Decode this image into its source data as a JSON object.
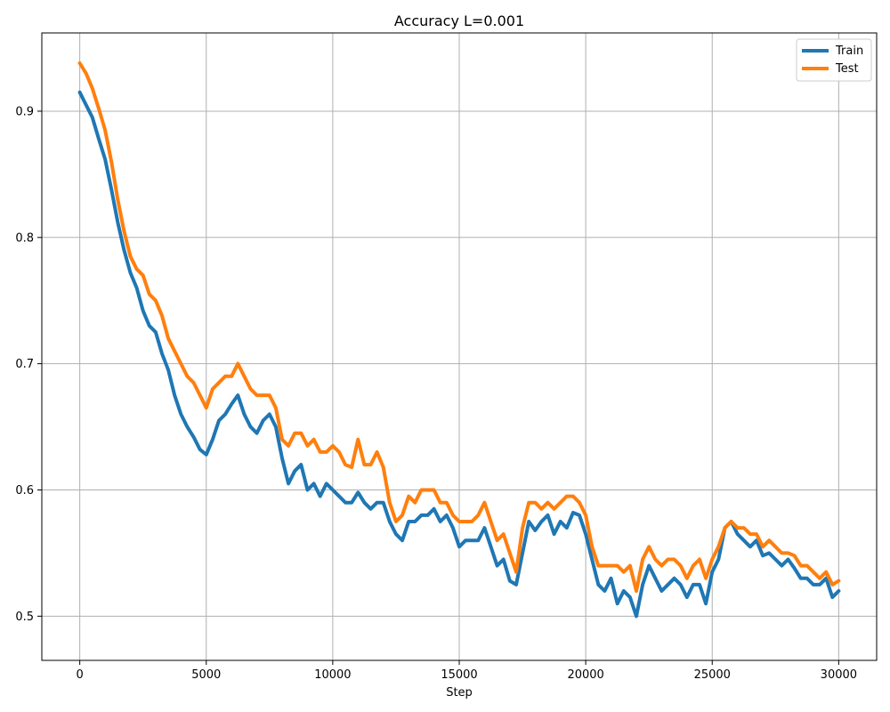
{
  "chart_data": {
    "type": "line",
    "title": "Accuracy L=0.001",
    "xlabel": "Step",
    "ylabel": "",
    "xlim": [
      -1500,
      31500
    ],
    "ylim": [
      0.465,
      0.962
    ],
    "xticks": [
      0,
      5000,
      10000,
      15000,
      20000,
      25000,
      30000
    ],
    "yticks": [
      0.5,
      0.6,
      0.7,
      0.8,
      0.9
    ],
    "grid": true,
    "legend_position": "top-right",
    "series": [
      {
        "name": "Train",
        "color": "#1f77b4",
        "x": [
          0,
          250,
          500,
          750,
          1000,
          1250,
          1500,
          1750,
          2000,
          2250,
          2500,
          2750,
          3000,
          3250,
          3500,
          3750,
          4000,
          4250,
          4500,
          4750,
          5000,
          5250,
          5500,
          5750,
          6000,
          6250,
          6500,
          6750,
          7000,
          7250,
          7500,
          7750,
          8000,
          8250,
          8500,
          8750,
          9000,
          9250,
          9500,
          9750,
          10000,
          10250,
          10500,
          10750,
          11000,
          11250,
          11500,
          11750,
          12000,
          12250,
          12500,
          12750,
          13000,
          13250,
          13500,
          13750,
          14000,
          14250,
          14500,
          14750,
          15000,
          15250,
          15500,
          15750,
          16000,
          16250,
          16500,
          16750,
          17000,
          17250,
          17500,
          17750,
          18000,
          18250,
          18500,
          18750,
          19000,
          19250,
          19500,
          19750,
          20000,
          20250,
          20500,
          20750,
          21000,
          21250,
          21500,
          21750,
          22000,
          22250,
          22500,
          22750,
          23000,
          23250,
          23500,
          23750,
          24000,
          24250,
          24500,
          24750,
          25000,
          25250,
          25500,
          25750,
          26000,
          26250,
          26500,
          26750,
          27000,
          27250,
          27500,
          27750,
          28000,
          28250,
          28500,
          28750,
          29000,
          29250,
          29500,
          29750,
          30000
        ],
        "values": [
          0.915,
          0.905,
          0.895,
          0.878,
          0.862,
          0.838,
          0.812,
          0.79,
          0.772,
          0.76,
          0.742,
          0.73,
          0.725,
          0.708,
          0.695,
          0.675,
          0.66,
          0.65,
          0.642,
          0.632,
          0.628,
          0.64,
          0.655,
          0.66,
          0.668,
          0.675,
          0.66,
          0.65,
          0.645,
          0.655,
          0.66,
          0.65,
          0.625,
          0.605,
          0.615,
          0.62,
          0.6,
          0.605,
          0.595,
          0.605,
          0.6,
          0.595,
          0.59,
          0.59,
          0.598,
          0.59,
          0.585,
          0.59,
          0.59,
          0.575,
          0.565,
          0.56,
          0.575,
          0.575,
          0.58,
          0.58,
          0.585,
          0.575,
          0.58,
          0.57,
          0.555,
          0.56,
          0.56,
          0.56,
          0.57,
          0.555,
          0.54,
          0.545,
          0.528,
          0.525,
          0.55,
          0.575,
          0.568,
          0.575,
          0.58,
          0.565,
          0.575,
          0.57,
          0.582,
          0.58,
          0.565,
          0.545,
          0.525,
          0.52,
          0.53,
          0.51,
          0.52,
          0.515,
          0.5,
          0.525,
          0.54,
          0.53,
          0.52,
          0.525,
          0.53,
          0.525,
          0.515,
          0.525,
          0.525,
          0.51,
          0.535,
          0.545,
          0.57,
          0.575,
          0.565,
          0.56,
          0.555,
          0.56,
          0.548,
          0.55,
          0.545,
          0.54,
          0.545,
          0.538,
          0.53,
          0.53,
          0.525,
          0.525,
          0.53,
          0.515,
          0.52
        ]
      },
      {
        "name": "Test",
        "color": "#ff7f0e",
        "x": [
          0,
          250,
          500,
          750,
          1000,
          1250,
          1500,
          1750,
          2000,
          2250,
          2500,
          2750,
          3000,
          3250,
          3500,
          3750,
          4000,
          4250,
          4500,
          4750,
          5000,
          5250,
          5500,
          5750,
          6000,
          6250,
          6500,
          6750,
          7000,
          7250,
          7500,
          7750,
          8000,
          8250,
          8500,
          8750,
          9000,
          9250,
          9500,
          9750,
          10000,
          10250,
          10500,
          10750,
          11000,
          11250,
          11500,
          11750,
          12000,
          12250,
          12500,
          12750,
          13000,
          13250,
          13500,
          13750,
          14000,
          14250,
          14500,
          14750,
          15000,
          15250,
          15500,
          15750,
          16000,
          16250,
          16500,
          16750,
          17000,
          17250,
          17500,
          17750,
          18000,
          18250,
          18500,
          18750,
          19000,
          19250,
          19500,
          19750,
          20000,
          20250,
          20500,
          20750,
          21000,
          21250,
          21500,
          21750,
          22000,
          22250,
          22500,
          22750,
          23000,
          23250,
          23500,
          23750,
          24000,
          24250,
          24500,
          24750,
          25000,
          25250,
          25500,
          25750,
          26000,
          26250,
          26500,
          26750,
          27000,
          27250,
          27500,
          27750,
          28000,
          28250,
          28500,
          28750,
          29000,
          29250,
          29500,
          29750,
          30000
        ],
        "values": [
          0.938,
          0.93,
          0.918,
          0.902,
          0.885,
          0.86,
          0.83,
          0.805,
          0.785,
          0.775,
          0.77,
          0.755,
          0.75,
          0.738,
          0.72,
          0.71,
          0.7,
          0.69,
          0.685,
          0.675,
          0.665,
          0.68,
          0.685,
          0.69,
          0.69,
          0.7,
          0.69,
          0.68,
          0.675,
          0.675,
          0.675,
          0.665,
          0.64,
          0.635,
          0.645,
          0.645,
          0.635,
          0.64,
          0.63,
          0.63,
          0.635,
          0.63,
          0.62,
          0.618,
          0.64,
          0.62,
          0.62,
          0.63,
          0.618,
          0.59,
          0.575,
          0.58,
          0.595,
          0.59,
          0.6,
          0.6,
          0.6,
          0.59,
          0.59,
          0.58,
          0.575,
          0.575,
          0.575,
          0.58,
          0.59,
          0.575,
          0.56,
          0.565,
          0.55,
          0.535,
          0.57,
          0.59,
          0.59,
          0.585,
          0.59,
          0.585,
          0.59,
          0.595,
          0.595,
          0.59,
          0.58,
          0.555,
          0.54,
          0.54,
          0.54,
          0.54,
          0.535,
          0.54,
          0.52,
          0.545,
          0.555,
          0.545,
          0.54,
          0.545,
          0.545,
          0.54,
          0.53,
          0.54,
          0.545,
          0.53,
          0.545,
          0.555,
          0.57,
          0.575,
          0.57,
          0.57,
          0.565,
          0.565,
          0.555,
          0.56,
          0.555,
          0.55,
          0.55,
          0.548,
          0.54,
          0.54,
          0.535,
          0.53,
          0.535,
          0.525,
          0.528
        ]
      }
    ]
  }
}
